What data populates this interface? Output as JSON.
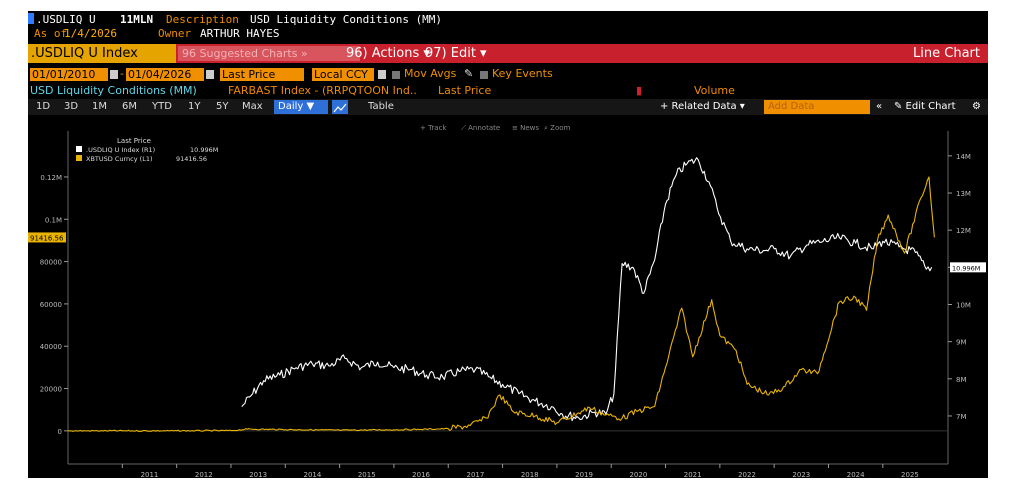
{
  "header": {
    "ticker": ".USDLIQ U",
    "code": "11MLN",
    "description_label": "Description",
    "description": "USD Liquidity Conditions (MM)",
    "as_of_label": "As of",
    "as_of": "1/4/2026",
    "owner_label": "Owner",
    "owner": "ARTHUR HAYES"
  },
  "menu": {
    "security": ".USDLIQ U Index",
    "suggested": "96 Suggested Charts »",
    "actions": "96) Actions ▾",
    "edit": "97) Edit ▾",
    "chart_type": "Line Chart"
  },
  "controls": {
    "start_date": "01/01/2010",
    "end_date": "01/04/2026",
    "price_field": "Last Price",
    "currency": "Local CCY",
    "mov_avgs": "Mov Avgs",
    "key_events": "Key Events"
  },
  "series_row": {
    "main": "USD Liquidity Conditions (MM)",
    "index": "FARBAST Index - (RRPQTOON Ind..",
    "last_price": "Last Price",
    "volume": "Volume"
  },
  "toolbar": {
    "periods": [
      "1D",
      "3D",
      "1M",
      "6M",
      "YTD",
      "1Y",
      "5Y",
      "Max"
    ],
    "frequency": "Daily ▼",
    "table": "Table",
    "related": "+ Related Data ▾",
    "add_data_placeholder": "Add Data",
    "edit_chart": "✎ Edit Chart",
    "collapse": "«",
    "gear": "⚙"
  },
  "chart_tools": {
    "track": "+ Track",
    "annotate": "⟋ Annotate",
    "news": "≡ News",
    "zoom": "⌕ Zoom"
  },
  "legend": {
    "header": "Last Price",
    "items": [
      {
        "label": ".USDLIQ U Index (R1)",
        "value": "10.996M",
        "color": "#ffffff"
      },
      {
        "label": "XBTUSD Curncy (L1)",
        "value": "91416.56",
        "color": "#e8b400"
      }
    ]
  },
  "chart_data": {
    "type": "line",
    "x_ticks": [
      "2011",
      "2012",
      "2013",
      "2014",
      "2015",
      "2016",
      "2017",
      "2018",
      "2019",
      "2020",
      "2021",
      "2022",
      "2023",
      "2024",
      "2025"
    ],
    "left_axis": {
      "ticks": [
        0,
        20000,
        40000,
        60000,
        80000,
        100000,
        120000
      ],
      "labels": [
        "0",
        "20000",
        "40000",
        "60000",
        "80000",
        "0.1M",
        "0.12M"
      ],
      "range": [
        -10000,
        137000
      ],
      "last_value_label": "91416.56"
    },
    "right_axis": {
      "ticks": [
        7,
        8,
        9,
        10,
        11,
        12,
        13,
        14
      ],
      "labels": [
        "7M",
        "8M",
        "9M",
        "10M",
        "11M",
        "12M",
        "13M",
        "14M"
      ],
      "range": [
        6.03,
        14.4
      ],
      "last_value_label": "10.996M"
    },
    "series": [
      {
        "name": ".USDLIQ U Index (R1)",
        "axis": "right",
        "color": "#ffffff",
        "x": [
          2013.2,
          2013.4,
          2013.6,
          2013.9,
          2014.2,
          2014.5,
          2014.8,
          2015.1,
          2015.4,
          2015.7,
          2016.0,
          2016.3,
          2016.6,
          2016.9,
          2017.2,
          2017.5,
          2017.8,
          2018.0,
          2018.3,
          2018.6,
          2018.9,
          2019.1,
          2019.4,
          2019.7,
          2019.9,
          2020.05,
          2020.2,
          2020.4,
          2020.6,
          2020.8,
          2021.0,
          2021.2,
          2021.4,
          2021.6,
          2021.8,
          2021.95,
          2022.2,
          2022.5,
          2022.8,
          2023.0,
          2023.3,
          2023.6,
          2023.9,
          2024.2,
          2024.5,
          2024.8,
          2025.0,
          2025.3,
          2025.6,
          2025.8,
          2025.9
        ],
        "y": [
          7.25,
          7.6,
          7.95,
          8.1,
          8.3,
          8.4,
          8.35,
          8.55,
          8.3,
          8.45,
          8.3,
          8.25,
          8.1,
          8.05,
          8.2,
          8.25,
          8.0,
          7.85,
          7.6,
          7.4,
          7.25,
          7.05,
          6.95,
          7.1,
          7.05,
          7.6,
          11.1,
          11.0,
          10.3,
          11.2,
          12.7,
          13.5,
          13.8,
          13.9,
          13.3,
          12.6,
          11.7,
          11.5,
          11.45,
          11.5,
          11.3,
          11.6,
          11.7,
          11.8,
          11.65,
          11.5,
          11.7,
          11.55,
          11.4,
          10.95,
          11.0
        ]
      },
      {
        "name": "XBTUSD Curncy (L1)",
        "axis": "left",
        "color": "#e8b400",
        "x": [
          2010.0,
          2011.0,
          2012.0,
          2013.0,
          2013.3,
          2014.0,
          2015.0,
          2016.0,
          2016.5,
          2017.0,
          2017.4,
          2017.7,
          2017.95,
          2018.2,
          2018.6,
          2019.0,
          2019.4,
          2019.6,
          2019.9,
          2020.2,
          2020.5,
          2020.8,
          2021.0,
          2021.3,
          2021.5,
          2021.85,
          2022.0,
          2022.3,
          2022.5,
          2022.9,
          2023.2,
          2023.5,
          2023.8,
          2024.2,
          2024.5,
          2024.7,
          2024.9,
          2025.1,
          2025.4,
          2025.7,
          2025.85,
          2025.95
        ],
        "y": [
          0,
          0,
          0,
          100,
          800,
          600,
          300,
          500,
          700,
          1000,
          2500,
          6000,
          17000,
          9000,
          7000,
          3800,
          8500,
          11000,
          7500,
          6000,
          9500,
          11500,
          30000,
          58000,
          35000,
          62000,
          45000,
          38000,
          22000,
          17000,
          21000,
          29000,
          27000,
          61000,
          63000,
          57000,
          90000,
          102000,
          84000,
          110000,
          120000,
          91416
        ]
      }
    ]
  }
}
